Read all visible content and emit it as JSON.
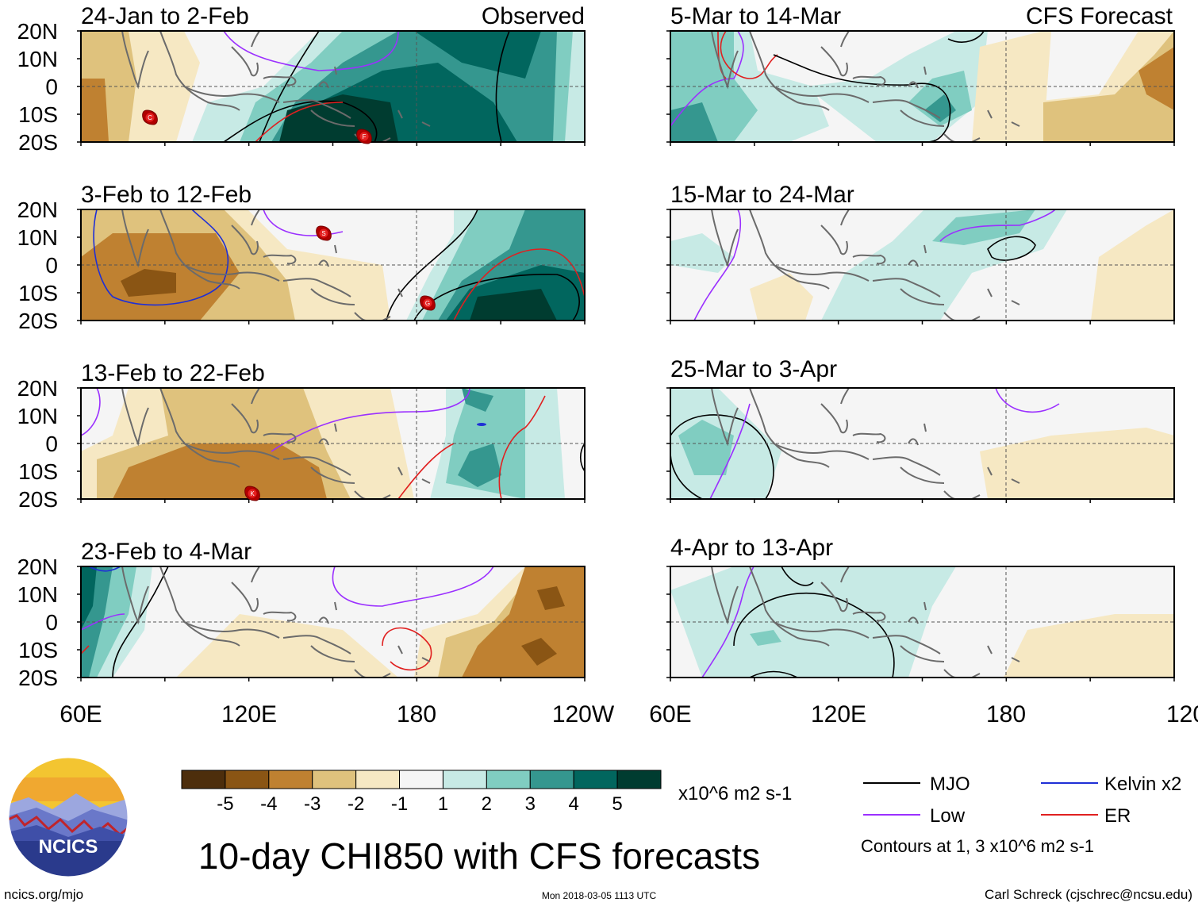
{
  "panels": [
    {
      "period": "24-Jan to 2-Feb",
      "tag": "Observed"
    },
    {
      "period": "3-Feb to 12-Feb",
      "tag": ""
    },
    {
      "period": "13-Feb to 22-Feb",
      "tag": ""
    },
    {
      "period": "23-Feb to 4-Mar",
      "tag": ""
    },
    {
      "period": "5-Mar to 14-Mar",
      "tag": "CFS Forecast"
    },
    {
      "period": "15-Mar to 24-Mar",
      "tag": ""
    },
    {
      "period": "25-Mar to 3-Apr",
      "tag": ""
    },
    {
      "period": "4-Apr to 13-Apr",
      "tag": ""
    }
  ],
  "lat_ticks": [
    "20N",
    "10N",
    "0",
    "10S",
    "20S"
  ],
  "lon_ticks": [
    "60E",
    "120E",
    "180",
    "120W"
  ],
  "colorbar": {
    "colors": [
      "#4d2e0c",
      "#8a5514",
      "#bf8131",
      "#dfc27d",
      "#f6e8c3",
      "#f5f5f5",
      "#c7eae5",
      "#80cdc1",
      "#35978f",
      "#01665e",
      "#003c30"
    ],
    "labels": [
      "-5",
      "-4",
      "-3",
      "-2",
      "-1",
      "1",
      "2",
      "3",
      "4",
      "5"
    ],
    "units": "x10^6 m2 s-1"
  },
  "legend": {
    "items": [
      {
        "label": "MJO",
        "color": "#000000"
      },
      {
        "label": "Kelvin x2",
        "color": "#1f2fd6"
      },
      {
        "label": "Low",
        "color": "#9b30ff"
      },
      {
        "label": "ER",
        "color": "#e02020"
      }
    ],
    "note": "Contours at 1, 3 x10^6 m2 s-1"
  },
  "title": "10-day CHI850 with CFS forecasts",
  "logo_text": "NCICS",
  "footer": {
    "left": "ncics.org/mjo",
    "center": "Mon 2018-03-05 1113 UTC",
    "right": "Carl Schreck (cjschrec@ncsu.edu)"
  },
  "storms": [
    {
      "label": "C",
      "panel": 0
    },
    {
      "label": "F",
      "panel": 0
    },
    {
      "label": "S",
      "panel": 1
    },
    {
      "label": "G",
      "panel": 1
    },
    {
      "label": "K",
      "panel": 2
    }
  ]
}
